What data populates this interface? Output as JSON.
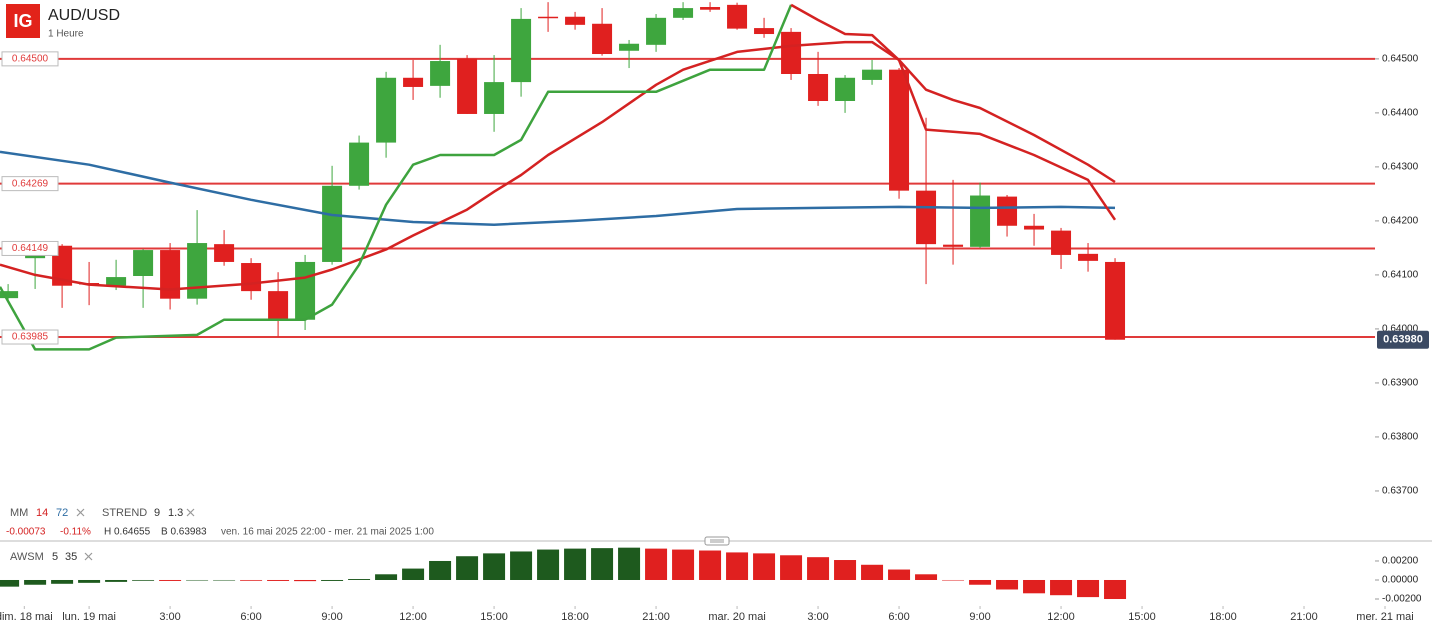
{
  "header": {
    "logo": "IG",
    "title": "AUD/USD",
    "subtitle": "1 Heure"
  },
  "chart_data": {
    "type": "candlestick",
    "xlim": [
      -3.3,
      49.74
    ],
    "xticks": [
      {
        "value": -2.4,
        "label": "dim. 18 mai"
      },
      {
        "value": 0,
        "label": "lun. 19 mai"
      },
      {
        "value": 3,
        "label": "3:00"
      },
      {
        "value": 6,
        "label": "6:00"
      },
      {
        "value": 9,
        "label": "9:00"
      },
      {
        "value": 12,
        "label": "12:00"
      },
      {
        "value": 15,
        "label": "15:00"
      },
      {
        "value": 18,
        "label": "18:00"
      },
      {
        "value": 21,
        "label": "21:00"
      },
      {
        "value": 24,
        "label": "mar. 20 mai"
      },
      {
        "value": 27,
        "label": "3:00"
      },
      {
        "value": 30,
        "label": "6:00"
      },
      {
        "value": 33,
        "label": "9:00"
      },
      {
        "value": 36,
        "label": "12:00"
      },
      {
        "value": 39,
        "label": "15:00"
      },
      {
        "value": 42,
        "label": "18:00"
      },
      {
        "value": 45,
        "label": "21:00"
      },
      {
        "value": 48,
        "label": "mer. 21 mai"
      }
    ],
    "ylim": [
      0.63674,
      0.64609
    ],
    "yticks": [
      {
        "value": 0.645,
        "label": "0.64500"
      },
      {
        "value": 0.644,
        "label": "0.64400"
      },
      {
        "value": 0.643,
        "label": "0.64300"
      },
      {
        "value": 0.642,
        "label": "0.64200"
      },
      {
        "value": 0.641,
        "label": "0.64100"
      },
      {
        "value": 0.64,
        "label": "0.64000"
      },
      {
        "value": 0.639,
        "label": "0.63900"
      },
      {
        "value": 0.638,
        "label": "0.63800"
      },
      {
        "value": 0.637,
        "label": "0.63700"
      }
    ],
    "up_color": "#3ea63e",
    "down_color": "#e0201f",
    "x": [
      -3,
      -2,
      -1,
      0,
      1,
      2,
      3,
      4,
      5,
      6,
      7,
      8,
      9,
      10,
      11,
      12,
      13,
      14,
      15,
      16,
      17,
      18,
      19,
      20,
      21,
      22,
      23,
      24,
      25,
      26,
      27,
      28,
      29,
      30,
      31,
      32,
      33,
      34,
      35,
      36,
      37,
      38
    ],
    "open": [
      0.64057,
      0.64131,
      0.64154,
      0.64085,
      0.6408,
      0.64098,
      0.64146,
      0.64056,
      0.64157,
      0.64122,
      0.6407,
      0.64017,
      0.64124,
      0.64265,
      0.64345,
      0.64465,
      0.6445,
      0.645,
      0.64398,
      0.64457,
      0.64578,
      0.64578,
      0.64565,
      0.64515,
      0.64526,
      0.64576,
      0.64596,
      0.646,
      0.64557,
      0.6455,
      0.64472,
      0.64422,
      0.64461,
      0.6448,
      0.64256,
      0.64156,
      0.64152,
      0.64245,
      0.64191,
      0.64182,
      0.64139,
      0.64124
    ],
    "high": [
      0.64083,
      0.64157,
      0.64157,
      0.64124,
      0.64128,
      0.64148,
      0.64159,
      0.6422,
      0.64183,
      0.64131,
      0.64105,
      0.64137,
      0.64302,
      0.64358,
      0.64476,
      0.64498,
      0.64526,
      0.64507,
      0.64507,
      0.64594,
      0.64605,
      0.64587,
      0.64594,
      0.64535,
      0.64583,
      0.64605,
      0.64605,
      0.64604,
      0.64576,
      0.64557,
      0.64513,
      0.6447,
      0.64498,
      0.64483,
      0.64391,
      0.64276,
      0.64271,
      0.64248,
      0.64213,
      0.64187,
      0.64159,
      0.64131
    ],
    "low": [
      0.64054,
      0.64074,
      0.64039,
      0.64044,
      0.64072,
      0.64039,
      0.64036,
      0.64045,
      0.64117,
      0.64054,
      0.63986,
      0.63998,
      0.64119,
      0.64258,
      0.64317,
      0.64424,
      0.64428,
      0.64398,
      0.64365,
      0.6443,
      0.6455,
      0.64554,
      0.64506,
      0.64483,
      0.64513,
      0.64572,
      0.64587,
      0.64554,
      0.64539,
      0.64461,
      0.64413,
      0.644,
      0.64452,
      0.64241,
      0.64083,
      0.64119,
      0.6415,
      0.64171,
      0.64154,
      0.64111,
      0.64106,
      0.6398
    ],
    "close": [
      0.6407,
      0.64137,
      0.6408,
      0.64083,
      0.64096,
      0.64146,
      0.64056,
      0.64159,
      0.64124,
      0.6407,
      0.64017,
      0.64124,
      0.64265,
      0.64345,
      0.64465,
      0.64448,
      0.64496,
      0.64398,
      0.64457,
      0.64574,
      0.64576,
      0.64563,
      0.64509,
      0.64528,
      0.64576,
      0.64594,
      0.64591,
      0.64556,
      0.64546,
      0.64472,
      0.64422,
      0.64465,
      0.6448,
      0.64256,
      0.64157,
      0.64152,
      0.64247,
      0.64191,
      0.64184,
      0.64137,
      0.64126,
      0.6398
    ],
    "lines": [
      {
        "color": "#2e6da4",
        "x": [
          -3.3,
          0,
          3,
          6,
          9,
          12,
          15,
          18,
          21,
          24,
          27,
          30,
          33,
          36,
          38
        ],
        "values": [
          0.64328,
          0.64304,
          0.64271,
          0.64239,
          0.64211,
          0.64198,
          0.64193,
          0.642,
          0.64209,
          0.64222,
          0.64224,
          0.64226,
          0.64224,
          0.64226,
          0.64224
        ]
      },
      {
        "color": "#d42222",
        "x": [
          -3.3,
          -2,
          0,
          3,
          6,
          8,
          9,
          11,
          12,
          14,
          15,
          16,
          17,
          19,
          21,
          22,
          24,
          26,
          28,
          29,
          30,
          31,
          33,
          35,
          37,
          38
        ],
        "values": [
          0.64119,
          0.641,
          0.64082,
          0.64073,
          0.64084,
          0.64095,
          0.6411,
          0.64147,
          0.64173,
          0.64221,
          0.64254,
          0.64285,
          0.64322,
          0.64383,
          0.64452,
          0.6448,
          0.64513,
          0.64524,
          0.64531,
          0.64531,
          0.64498,
          0.64369,
          0.64361,
          0.64322,
          0.64276,
          0.64202
        ]
      },
      {
        "color": "#3ea33e",
        "x": [
          -3.3,
          -2,
          0,
          1,
          4,
          5,
          8,
          9,
          10,
          11,
          12,
          13,
          15,
          16,
          17,
          21,
          23,
          25,
          26
        ],
        "values": [
          0.64078,
          0.63962,
          0.63962,
          0.63984,
          0.63989,
          0.64017,
          0.64017,
          0.64045,
          0.64119,
          0.6423,
          0.64304,
          0.64322,
          0.64322,
          0.6435,
          0.64439,
          0.64439,
          0.6448,
          0.6448,
          0.646
        ]
      },
      {
        "color": "#d42222",
        "x": [
          26,
          27,
          28,
          29,
          30,
          31,
          32,
          33,
          35,
          37,
          38
        ],
        "values": [
          0.646,
          0.64572,
          0.64546,
          0.64544,
          0.64498,
          0.64443,
          0.64424,
          0.64409,
          0.64359,
          0.64304,
          0.64272
        ]
      }
    ],
    "levels": [
      {
        "value": 0.645,
        "label": "0.64500"
      },
      {
        "value": 0.64269,
        "label": "0.64269"
      },
      {
        "value": 0.64149,
        "label": "0.64149"
      },
      {
        "value": 0.63985,
        "label": "0.63985"
      }
    ],
    "level_color": "#e03a3a",
    "last": {
      "value": 0.6398,
      "label": "0.63980"
    },
    "indicators": {
      "mm": {
        "name": "MM",
        "periods": [
          14,
          72
        ],
        "colors": [
          "#d42222",
          "#2e6da4"
        ]
      },
      "strend": {
        "name": "STREND",
        "params": [
          9,
          1.3
        ]
      }
    },
    "info": {
      "change": "-0.00073",
      "change_pct": "-0.11%",
      "high": "H 0.64655",
      "low": "B 0.63983",
      "range": "ven. 16 mai 2025 22:00 - mer. 21 mai 2025 1:00"
    },
    "awsm": {
      "name": "AWSM",
      "params": [
        5,
        35
      ],
      "up_color": "#1e5a1e",
      "down_color": "#e0201f",
      "ylim": [
        -0.00263,
        0.00368
      ],
      "yticks": [
        {
          "value": 0.002,
          "label": "0.00200"
        },
        {
          "value": 0,
          "label": "0.00000"
        },
        {
          "value": -0.002,
          "label": "-0.00200"
        }
      ],
      "values": [
        -0.0007,
        -0.0005,
        -0.0004,
        -0.0003,
        -0.0002,
        -8e-05,
        -0.0001,
        -5e-05,
        -3e-05,
        -8e-05,
        -0.0001,
        -0.00012,
        -0.0001,
        0.0001,
        0.0006,
        0.0012,
        0.002,
        0.0025,
        0.0028,
        0.003,
        0.0032,
        0.0033,
        0.00335,
        0.0034,
        0.0033,
        0.0032,
        0.0031,
        0.0029,
        0.0028,
        0.0026,
        0.0024,
        0.0021,
        0.0016,
        0.0011,
        0.0006,
        0,
        -0.0005,
        -0.001,
        -0.0014,
        -0.0016,
        -0.0018,
        -0.002
      ]
    }
  }
}
